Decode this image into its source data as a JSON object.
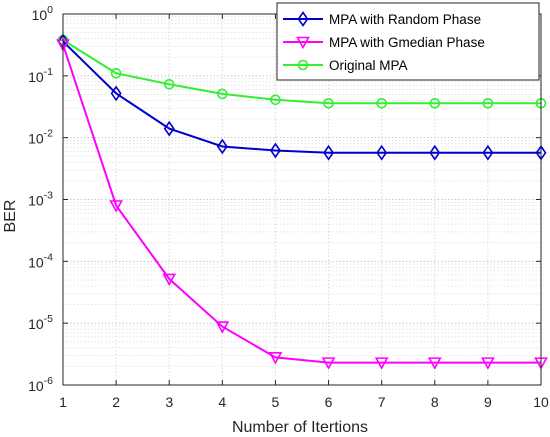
{
  "chart_data": {
    "type": "line",
    "title": "",
    "xlabel": "Number of Itertions",
    "ylabel": "BER",
    "x": [
      1,
      2,
      3,
      4,
      5,
      6,
      7,
      8,
      9,
      10
    ],
    "xlim": [
      1,
      10
    ],
    "ylim": [
      1e-06,
      1
    ],
    "yscale": "log",
    "x_ticks": [
      "1",
      "2",
      "3",
      "4",
      "5",
      "6",
      "7",
      "8",
      "9",
      "10"
    ],
    "y_ticks": [
      {
        "base": "10",
        "exp": "-6"
      },
      {
        "base": "10",
        "exp": "-5"
      },
      {
        "base": "10",
        "exp": "-4"
      },
      {
        "base": "10",
        "exp": "-3"
      },
      {
        "base": "10",
        "exp": "-2"
      },
      {
        "base": "10",
        "exp": "-1"
      },
      {
        "base": "10",
        "exp": "0"
      }
    ],
    "grid": true,
    "legend_position": "top-right",
    "series": [
      {
        "name": "MPA with Random Phase",
        "color": "#0000cc",
        "marker": "diamond",
        "values": [
          0.36,
          0.052,
          0.014,
          0.0072,
          0.0062,
          0.0057,
          0.0057,
          0.0057,
          0.0057,
          0.0057
        ]
      },
      {
        "name": "MPA with Gmedian Phase",
        "color": "#ff00ff",
        "marker": "triangle-down",
        "values": [
          0.32,
          0.0008,
          5.2e-05,
          8.8e-06,
          2.8e-06,
          2.3e-06,
          2.3e-06,
          2.3e-06,
          2.3e-06,
          2.3e-06
        ]
      },
      {
        "name": "Original MPA",
        "color": "#33ee33",
        "marker": "circle",
        "values": [
          0.38,
          0.11,
          0.073,
          0.051,
          0.041,
          0.036,
          0.036,
          0.036,
          0.036,
          0.036
        ]
      }
    ]
  }
}
